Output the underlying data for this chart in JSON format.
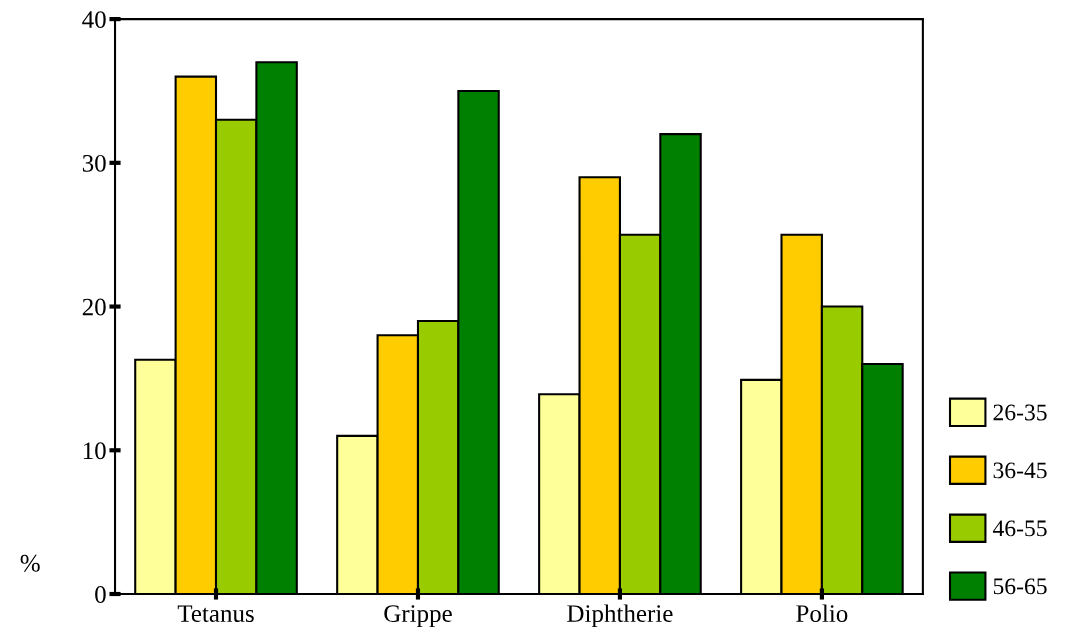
{
  "chart_data": {
    "type": "bar",
    "ylabel": "%",
    "categories": [
      "Tetanus",
      "Grippe",
      "Diphtherie",
      "Polio"
    ],
    "series": [
      {
        "name": "26-35",
        "color": "#ffff99",
        "values": [
          16.3,
          11.0,
          13.9,
          14.9
        ]
      },
      {
        "name": "36-45",
        "color": "#ffcc00",
        "values": [
          36,
          18,
          29,
          25
        ]
      },
      {
        "name": "46-55",
        "color": "#99cc00",
        "values": [
          33,
          19,
          25,
          20
        ]
      },
      {
        "name": "56-65",
        "color": "#008000",
        "values": [
          37,
          35,
          32,
          16
        ]
      }
    ],
    "ylim": [
      0,
      40
    ],
    "yticks": [
      0,
      10,
      20,
      30,
      40
    ],
    "grid": false,
    "legend": "bottom right"
  }
}
